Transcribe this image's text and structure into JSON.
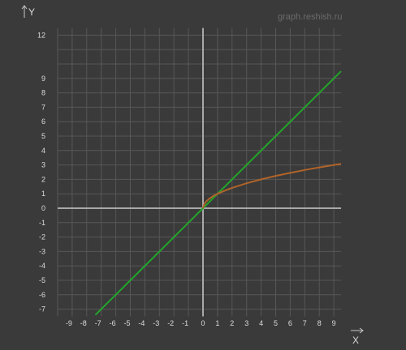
{
  "watermark": "graph.reshish.ru",
  "chart_data": {
    "type": "line",
    "xlabel": "X",
    "ylabel": "Y",
    "xlim": [
      -10,
      9.5
    ],
    "ylim": [
      -7.5,
      12.5
    ],
    "x_ticks": [
      -9,
      -8,
      -7,
      -6,
      -5,
      -4,
      -3,
      -2,
      -1,
      0,
      1,
      2,
      3,
      4,
      5,
      6,
      7,
      8,
      9
    ],
    "y_ticks": [
      -7,
      -6,
      -5,
      -4,
      -3,
      -2,
      -1,
      0,
      1,
      2,
      3,
      4,
      5,
      6,
      7,
      8,
      9,
      12
    ],
    "grid": true,
    "series": [
      {
        "color": "#22a52a",
        "x": [
          -7.4,
          -5,
          -3,
          -1,
          0,
          1,
          3,
          5,
          7,
          9.5
        ],
        "y": [
          -7.4,
          -5,
          -3,
          -1,
          0,
          1,
          3,
          5,
          7,
          9.5
        ]
      },
      {
        "color": "#b0642a",
        "x": [
          0,
          0.1,
          0.25,
          0.5,
          0.75,
          1,
          1.5,
          2,
          3,
          4,
          5,
          6,
          7,
          8,
          9,
          9.5
        ],
        "y": [
          0,
          0.32,
          0.5,
          0.71,
          0.87,
          1,
          1.22,
          1.41,
          1.73,
          2,
          2.24,
          2.45,
          2.65,
          2.83,
          3,
          3.08
        ]
      }
    ],
    "colors": {
      "background": "#3a3a3a",
      "grid": "#575757",
      "axis": "#a8a8a8"
    }
  }
}
